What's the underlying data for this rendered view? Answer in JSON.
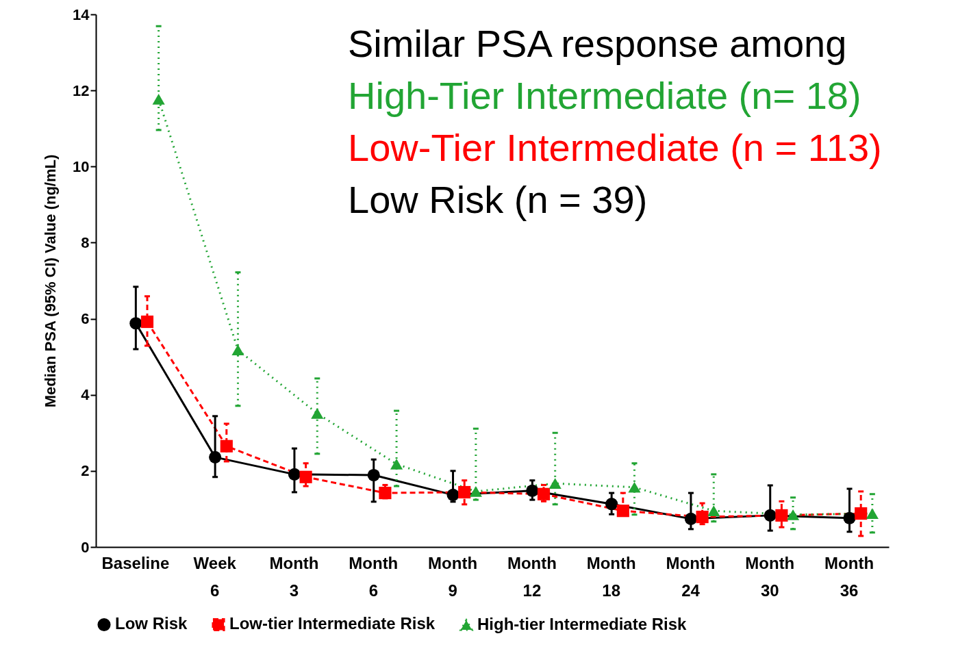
{
  "chart_data": {
    "type": "line",
    "ylabel": "Median PSA (95% CI) Value (ng/mL)",
    "categories": [
      "Baseline",
      "Week 6",
      "Month 3",
      "Month 6",
      "Month 9",
      "Month 12",
      "Month 18",
      "Month 24",
      "Month 30",
      "Month 36"
    ],
    "ylim": [
      0,
      14
    ],
    "yticks": [
      0,
      2,
      4,
      6,
      8,
      10,
      12,
      14
    ],
    "grid": false,
    "legend": "bottom",
    "annotations": [
      "Similar PSA response among",
      "High-Tier Intermediate (n= 18)",
      "Low-Tier Intermediate (n = 113)",
      "Low Risk (n = 39)"
    ],
    "series": [
      {
        "name": "Low Risk",
        "color": "#000000",
        "marker": "circle",
        "line_style": "solid",
        "values": [
          5.88,
          2.36,
          1.91,
          1.89,
          1.37,
          1.48,
          1.13,
          0.74,
          0.83,
          0.76
        ],
        "errors": [
          [
            5.2,
            6.84
          ],
          [
            1.84,
            3.44
          ],
          [
            1.44,
            2.59
          ],
          [
            1.19,
            2.3
          ],
          [
            1.19,
            2.0
          ],
          [
            1.24,
            1.75
          ],
          [
            0.86,
            1.42
          ],
          [
            0.47,
            1.42
          ],
          [
            0.43,
            1.62
          ],
          [
            0.4,
            1.53
          ]
        ]
      },
      {
        "name": "Low-tier Intermediate Risk",
        "color": "#ff0000",
        "marker": "square",
        "line_style": "dashed",
        "values": [
          5.92,
          2.65,
          1.84,
          1.42,
          1.44,
          1.39,
          0.95,
          0.79,
          0.83,
          0.88
        ],
        "errors": [
          [
            5.29,
            6.59
          ],
          [
            2.25,
            3.24
          ],
          [
            1.6,
            2.2
          ],
          [
            1.28,
            1.63
          ],
          [
            1.12,
            1.75
          ],
          [
            1.2,
            1.63
          ],
          [
            0.92,
            1.42
          ],
          [
            0.6,
            1.15
          ],
          [
            0.52,
            1.2
          ],
          [
            0.29,
            1.46
          ]
        ]
      },
      {
        "name": "High-tier Intermediate Risk",
        "color": "#22a534",
        "marker": "triangle",
        "line_style": "dotted",
        "values": [
          11.77,
          5.18,
          3.51,
          2.18,
          1.46,
          1.67,
          1.57,
          0.95,
          0.85,
          0.88
        ],
        "errors": [
          [
            10.96,
            13.69
          ],
          [
            3.71,
            7.22
          ],
          [
            2.45,
            4.43
          ],
          [
            1.6,
            3.58
          ],
          [
            1.24,
            3.11
          ],
          [
            1.12,
            3.0
          ],
          [
            0.85,
            2.2
          ],
          [
            0.67,
            1.91
          ],
          [
            0.47,
            1.3
          ],
          [
            0.38,
            1.39
          ]
        ]
      }
    ]
  }
}
